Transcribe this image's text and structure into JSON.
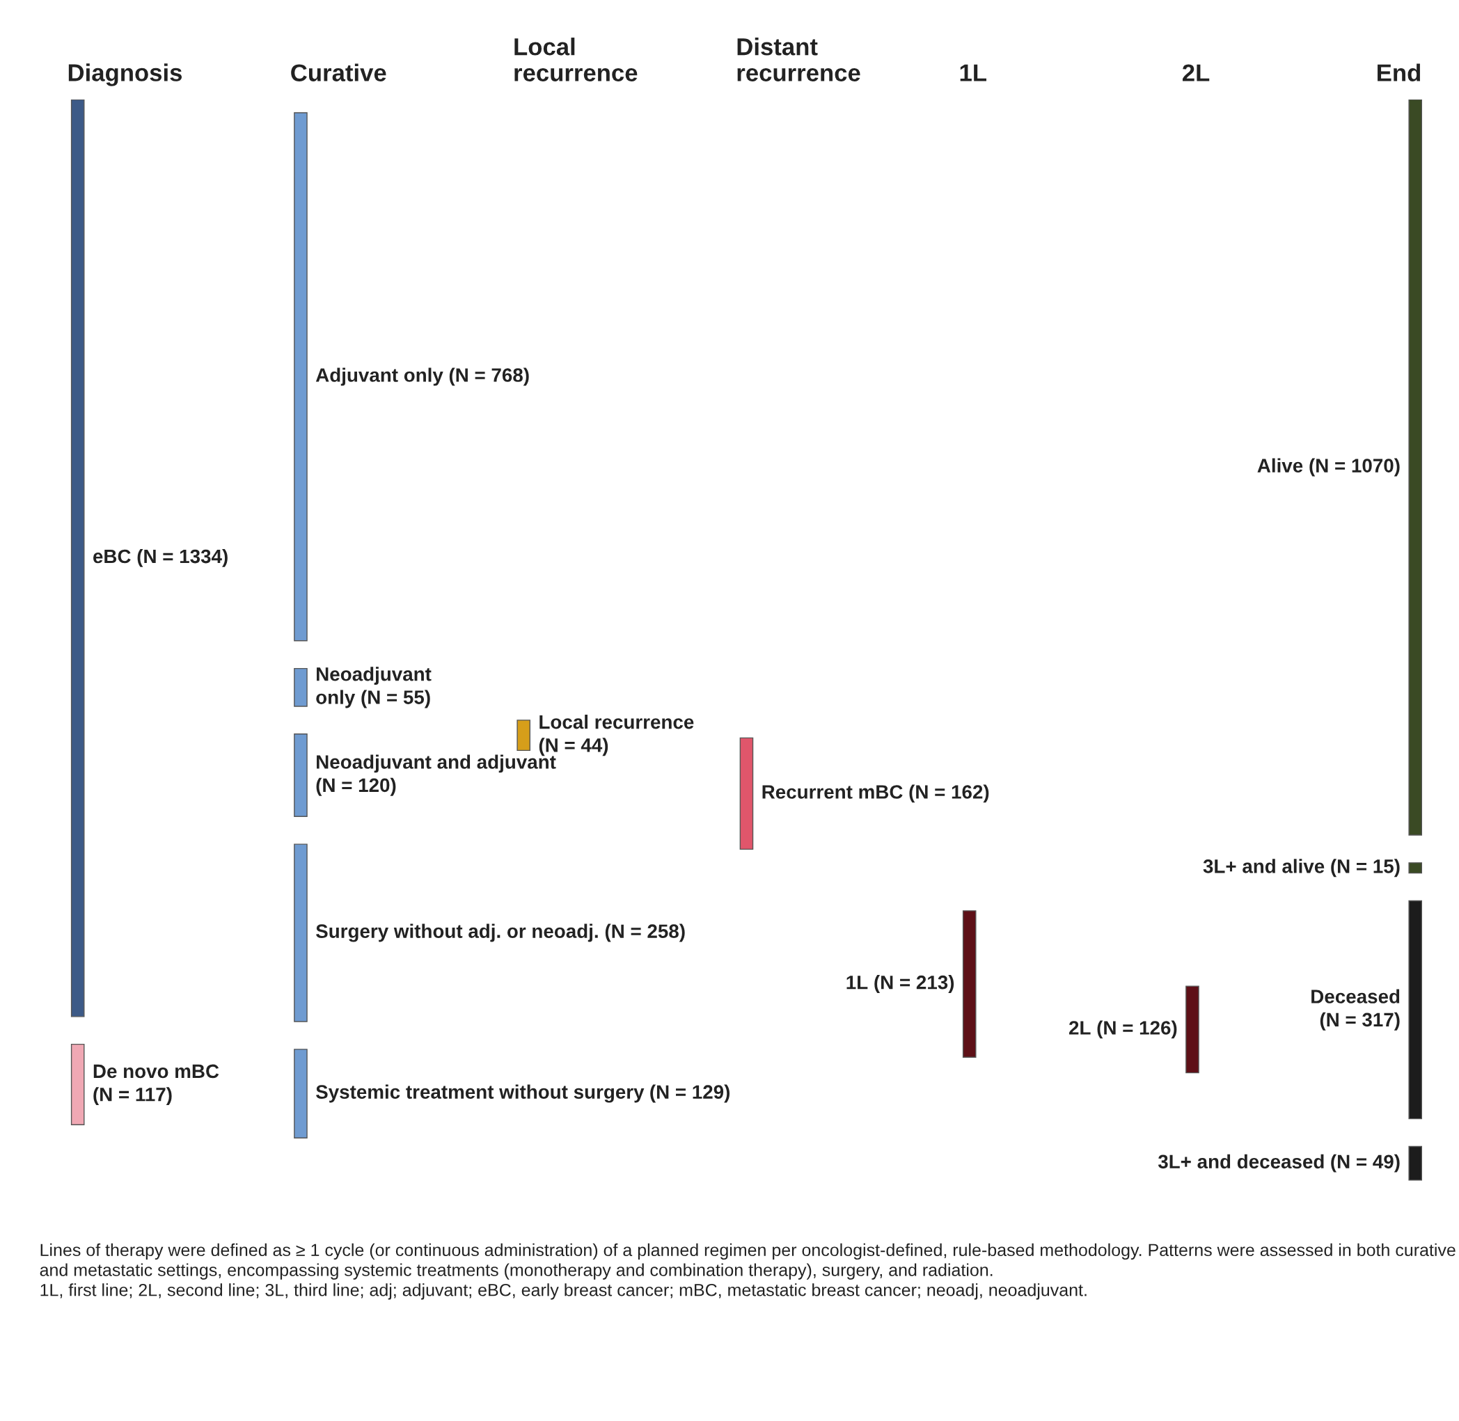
{
  "chart_data": {
    "type": "other",
    "categories": [
      "eBC",
      "De novo mBC",
      "Adjuvant only",
      "Neoadjuvant\nonly",
      "Neoadjuvant and adjuvant",
      "Surgery without adj. or neoadj.",
      "Systemic treatment without surgery",
      "Local recurrence",
      "Recurrent mBC",
      "1L",
      "2L",
      "Alive",
      "3L+ and alive",
      "Deceased",
      "3L+ and deceased"
    ],
    "colors": [
      "#3d5a87",
      "#f0a8b4",
      "#6f9bd1",
      "#6f9bd1",
      "#6f9bd1",
      "#6f9bd1",
      "#6f9bd1",
      "#d69e1a",
      "#e0566b",
      "#5e1017",
      "#5e1017",
      "#3a4a24",
      "#3a4a24",
      "#1c1c1c",
      "#1c1c1c"
    ],
    "series": [
      {
        "name": "Diagnosis",
        "values": [
          1334,
          117,
          null,
          null,
          null,
          null,
          null,
          null,
          null,
          null,
          null,
          null,
          null,
          null,
          null
        ],
        "value_labels": [
          " (N = 1334)",
          "\n(N = 117)",
          null,
          null,
          null,
          null,
          null,
          null,
          null,
          null,
          null,
          null,
          null,
          null,
          null
        ]
      },
      {
        "name": "Curative",
        "values": [
          null,
          null,
          768,
          55,
          120,
          258,
          129,
          null,
          null,
          null,
          null,
          null,
          null,
          null,
          null
        ],
        "value_labels": [
          null,
          null,
          " (N = 768)",
          " (N = 55)",
          "\n(N = 120)",
          " (N = 258)",
          " (N = 129)",
          null,
          null,
          null,
          null,
          null,
          null,
          null,
          null
        ]
      },
      {
        "name": "Local\nrecurrence",
        "values": [
          null,
          null,
          null,
          null,
          null,
          null,
          null,
          44,
          null,
          null,
          null,
          null,
          null,
          null,
          null
        ],
        "value_labels": [
          null,
          null,
          null,
          null,
          null,
          null,
          null,
          "\n(N = 44)",
          null,
          null,
          null,
          null,
          null,
          null,
          null
        ]
      },
      {
        "name": "Distant\nrecurrence",
        "values": [
          null,
          null,
          null,
          null,
          null,
          null,
          null,
          null,
          162,
          null,
          null,
          null,
          null,
          null,
          null
        ],
        "value_labels": [
          null,
          null,
          null,
          null,
          null,
          null,
          null,
          null,
          " (N = 162)",
          null,
          null,
          null,
          null,
          null,
          null
        ]
      },
      {
        "name": "1L",
        "values": [
          null,
          null,
          null,
          null,
          null,
          null,
          null,
          null,
          null,
          213,
          null,
          null,
          null,
          null,
          null
        ],
        "value_labels": [
          null,
          null,
          null,
          null,
          null,
          null,
          null,
          null,
          null,
          " (N = 213)",
          null,
          null,
          null,
          null,
          null
        ]
      },
      {
        "name": "2L",
        "values": [
          null,
          null,
          null,
          null,
          null,
          null,
          null,
          null,
          null,
          null,
          126,
          null,
          null,
          null,
          null
        ],
        "value_labels": [
          null,
          null,
          null,
          null,
          null,
          null,
          null,
          null,
          null,
          null,
          " (N = 126)",
          null,
          null,
          null,
          null
        ]
      },
      {
        "name": "End",
        "values": [
          null,
          null,
          null,
          null,
          null,
          null,
          null,
          null,
          null,
          null,
          null,
          1070,
          15,
          317,
          49
        ],
        "value_labels": [
          null,
          null,
          null,
          null,
          null,
          null,
          null,
          null,
          null,
          null,
          null,
          " (N = 1070)",
          " (N = 15)",
          "\n(N = 317)",
          " (N = 49)"
        ]
      }
    ],
    "annotations": [
      "Lines of therapy were defined as ≥ 1 cycle (or continuous administration) of a planned regimen per oncologist-defined, rule-based methodology. Patterns were assessed in both curative and metastatic settings, encompassing systemic treatments (monotherapy and combination therapy), surgery, and radiation.",
      "1L, first line; 2L, second line; 3L, third line; adj; adjuvant; eBC, early breast cancer; mBC, metastatic breast cancer; neoadj, neoadjuvant."
    ]
  }
}
